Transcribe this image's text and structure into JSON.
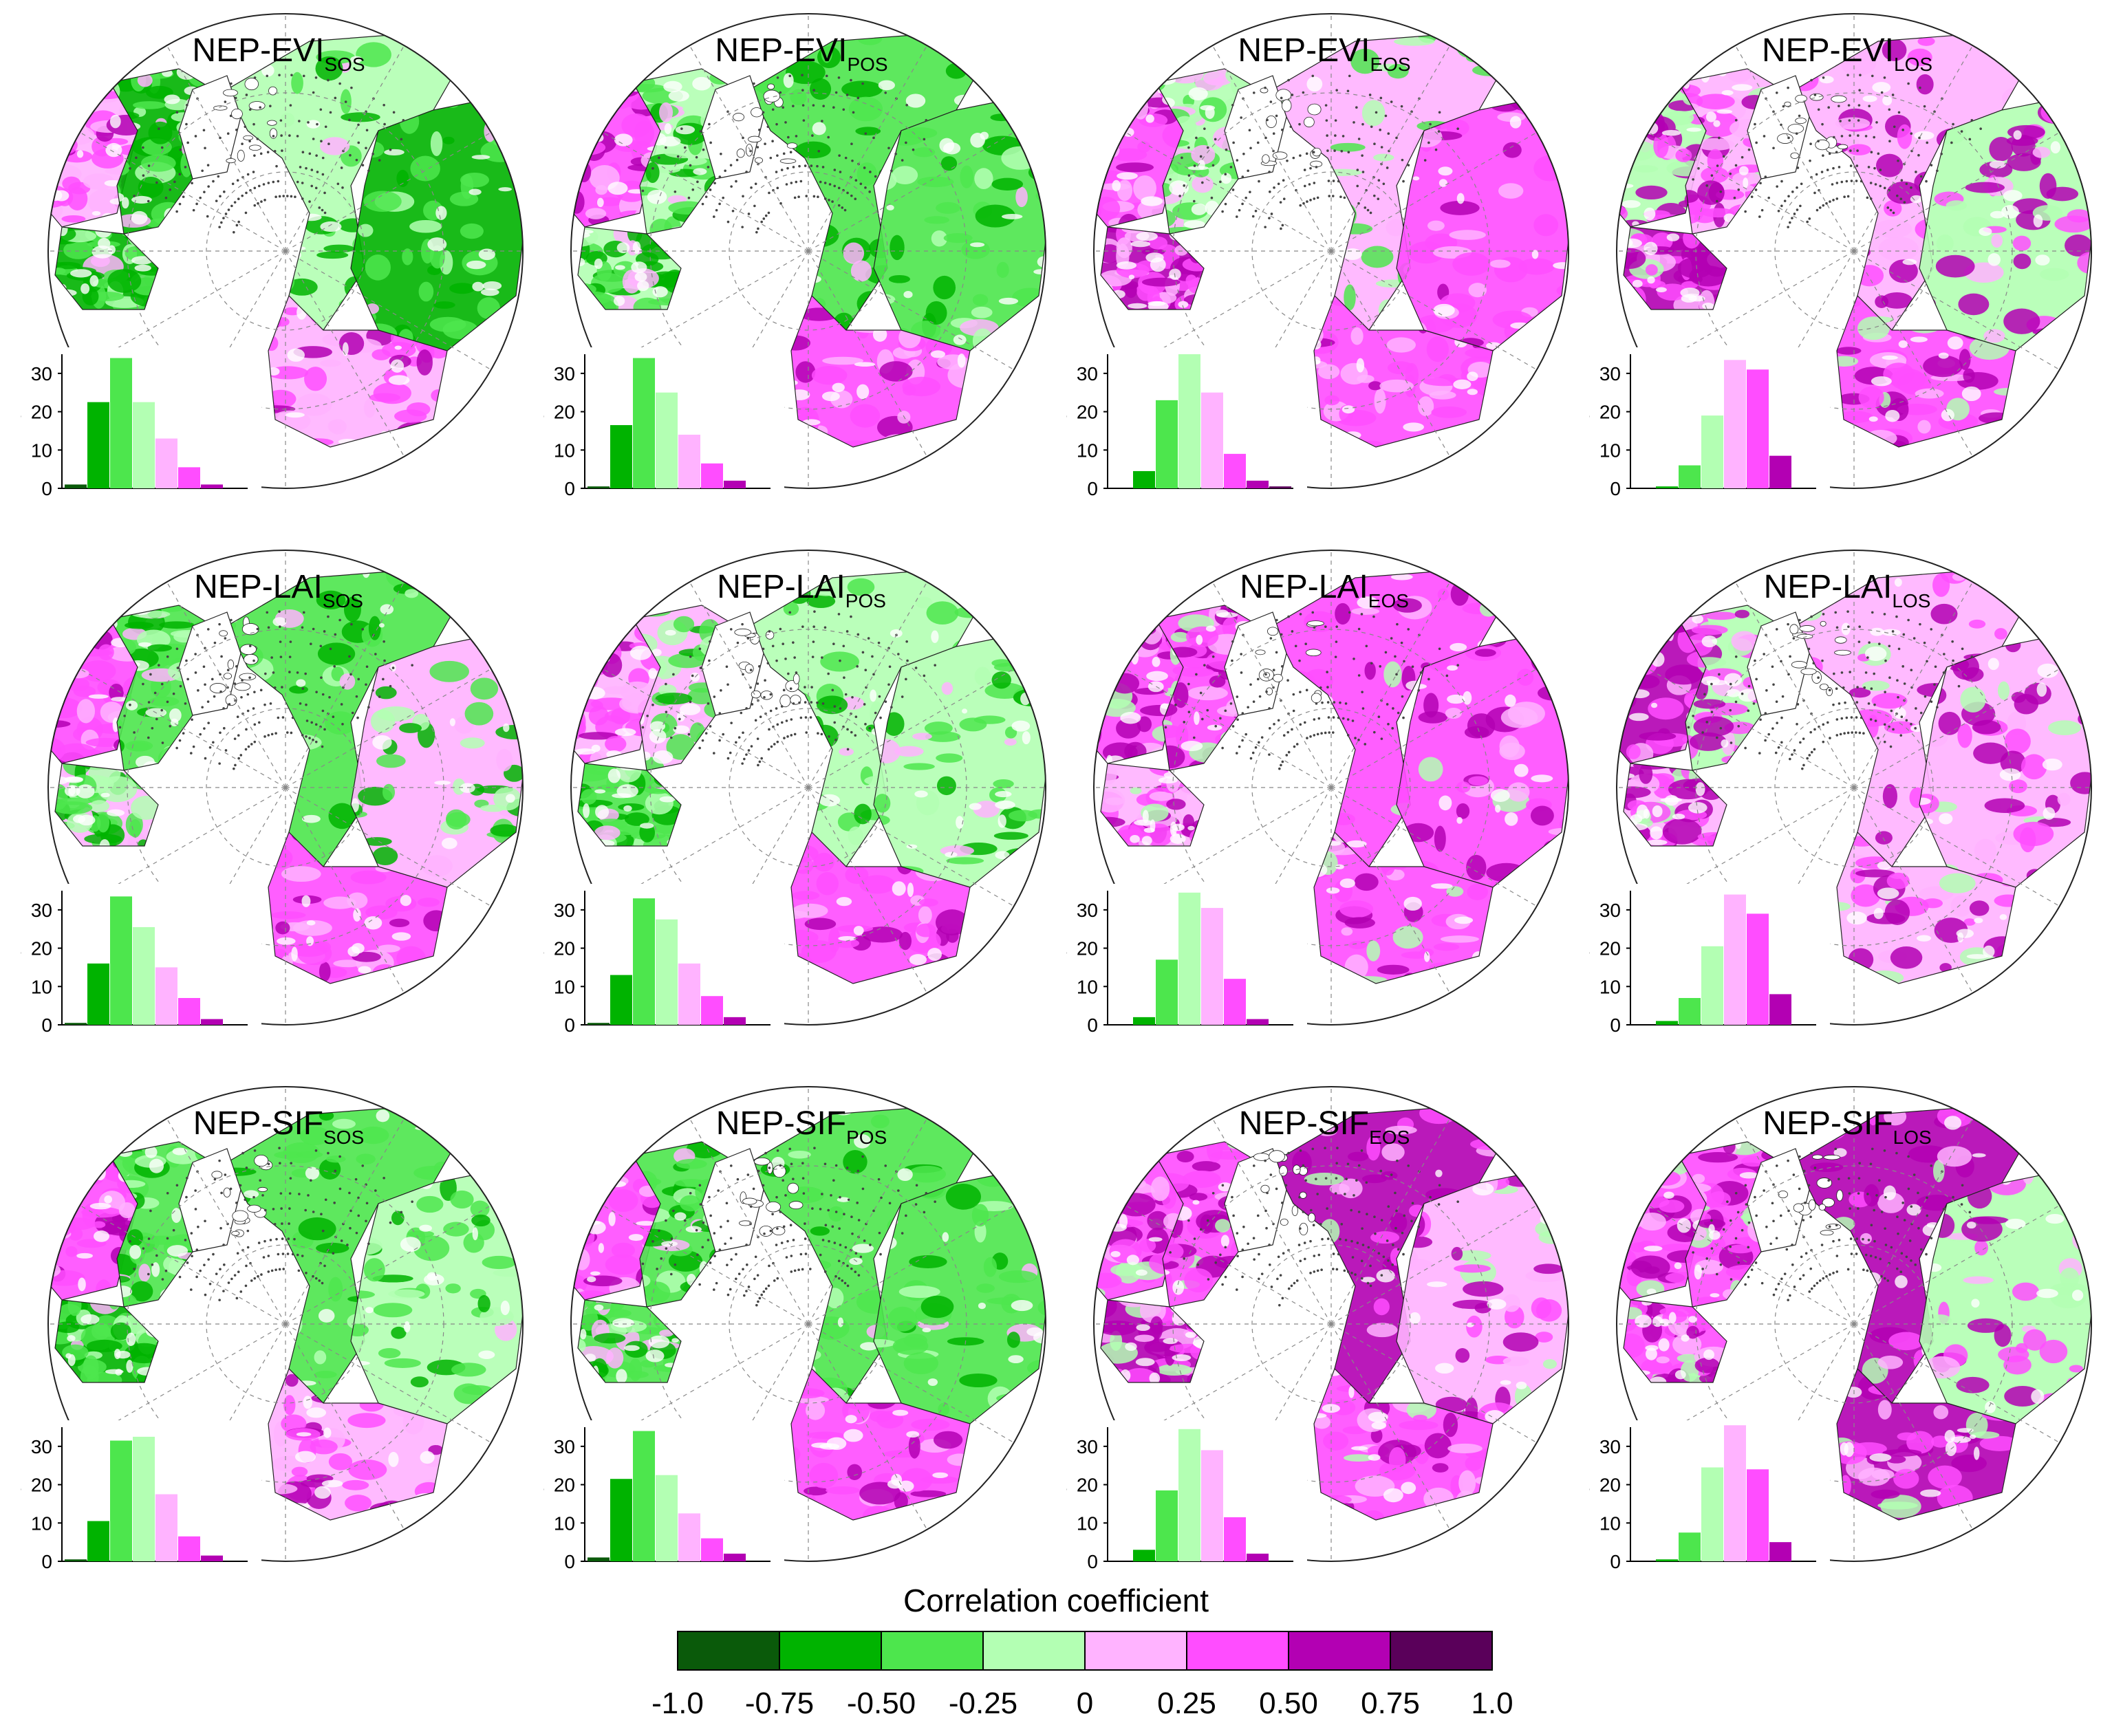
{
  "colorbar": {
    "title": "Correlation coefficient",
    "labels": [
      "-1.0",
      "-0.75",
      "-0.50",
      "-0.25",
      "0",
      "0.25",
      "0.50",
      "0.75",
      "1.0"
    ],
    "colors": [
      "#0a5a0a",
      "#00b300",
      "#4de64d",
      "#b3ffb3",
      "#ffb3ff",
      "#ff4dff",
      "#b300b3",
      "#5a005a"
    ]
  },
  "histogram_axis": {
    "ylabel": "%",
    "ticks": [
      "0",
      "10",
      "20",
      "30"
    ]
  },
  "panels": [
    {
      "row": 0,
      "col": 0,
      "title_main": "NEP-EVI",
      "title_sub": "SOS"
    },
    {
      "row": 0,
      "col": 1,
      "title_main": "NEP-EVI",
      "title_sub": "POS"
    },
    {
      "row": 0,
      "col": 2,
      "title_main": "NEP-EVI",
      "title_sub": "EOS"
    },
    {
      "row": 0,
      "col": 3,
      "title_main": "NEP-EVI",
      "title_sub": "LOS"
    },
    {
      "row": 1,
      "col": 0,
      "title_main": "NEP-LAI",
      "title_sub": "SOS"
    },
    {
      "row": 1,
      "col": 1,
      "title_main": "NEP-LAI",
      "title_sub": "POS"
    },
    {
      "row": 1,
      "col": 2,
      "title_main": "NEP-LAI",
      "title_sub": "EOS"
    },
    {
      "row": 1,
      "col": 3,
      "title_main": "NEP-LAI",
      "title_sub": "LOS"
    },
    {
      "row": 2,
      "col": 0,
      "title_main": "NEP-SIF",
      "title_sub": "SOS"
    },
    {
      "row": 2,
      "col": 1,
      "title_main": "NEP-SIF",
      "title_sub": "POS"
    },
    {
      "row": 2,
      "col": 2,
      "title_main": "NEP-SIF",
      "title_sub": "EOS"
    },
    {
      "row": 2,
      "col": 3,
      "title_main": "NEP-SIF",
      "title_sub": "LOS"
    }
  ],
  "chart_data": [
    {
      "type": "bar",
      "title": "NEP-EVI SOS",
      "ylabel": "%",
      "ylim": [
        0,
        35
      ],
      "categories": [
        "-1.0 to -0.75",
        "-0.75 to -0.50",
        "-0.50 to -0.25",
        "-0.25 to 0",
        "0 to 0.25",
        "0.25 to 0.50",
        "0.50 to 0.75",
        "0.75 to 1.0"
      ],
      "values": [
        1,
        22.5,
        34,
        22.5,
        13,
        5.5,
        1,
        0
      ],
      "map_dominant": "green"
    },
    {
      "type": "bar",
      "title": "NEP-EVI POS",
      "ylabel": "%",
      "ylim": [
        0,
        35
      ],
      "categories": [
        "-1.0 to -0.75",
        "-0.75 to -0.50",
        "-0.50 to -0.25",
        "-0.25 to 0",
        "0 to 0.25",
        "0.25 to 0.50",
        "0.50 to 0.75",
        "0.75 to 1.0"
      ],
      "values": [
        0.5,
        16.5,
        34,
        25,
        14,
        6.5,
        2,
        0
      ],
      "map_dominant": "green"
    },
    {
      "type": "bar",
      "title": "NEP-EVI EOS",
      "ylabel": "%",
      "ylim": [
        0,
        35
      ],
      "categories": [
        "-1.0 to -0.75",
        "-0.75 to -0.50",
        "-0.50 to -0.25",
        "-0.25 to 0",
        "0 to 0.25",
        "0.25 to 0.50",
        "0.50 to 0.75",
        "0.75 to 1.0"
      ],
      "values": [
        0,
        4.5,
        23,
        35,
        25,
        9,
        2,
        0.5
      ],
      "map_dominant": "mixed"
    },
    {
      "type": "bar",
      "title": "NEP-EVI LOS",
      "ylabel": "%",
      "ylim": [
        0,
        35
      ],
      "categories": [
        "-1.0 to -0.75",
        "-0.75 to -0.50",
        "-0.50 to -0.25",
        "-0.25 to 0",
        "0 to 0.25",
        "0.25 to 0.50",
        "0.50 to 0.75",
        "0.75 to 1.0"
      ],
      "values": [
        0,
        0.5,
        6,
        19,
        33.5,
        31,
        8.5,
        0
      ],
      "map_dominant": "magenta"
    },
    {
      "type": "bar",
      "title": "NEP-LAI SOS",
      "ylabel": "%",
      "ylim": [
        0,
        35
      ],
      "categories": [
        "-1.0 to -0.75",
        "-0.75 to -0.50",
        "-0.50 to -0.25",
        "-0.25 to 0",
        "0 to 0.25",
        "0.25 to 0.50",
        "0.50 to 0.75",
        "0.75 to 1.0"
      ],
      "values": [
        0.5,
        16,
        33.5,
        25.5,
        15,
        7,
        1.5,
        0
      ],
      "map_dominant": "green"
    },
    {
      "type": "bar",
      "title": "NEP-LAI POS",
      "ylabel": "%",
      "ylim": [
        0,
        35
      ],
      "categories": [
        "-1.0 to -0.75",
        "-0.75 to -0.50",
        "-0.50 to -0.25",
        "-0.25 to 0",
        "0 to 0.25",
        "0.25 to 0.50",
        "0.50 to 0.75",
        "0.75 to 1.0"
      ],
      "values": [
        0.5,
        13,
        33,
        27.5,
        16,
        7.5,
        2,
        0
      ],
      "map_dominant": "green"
    },
    {
      "type": "bar",
      "title": "NEP-LAI EOS",
      "ylabel": "%",
      "ylim": [
        0,
        35
      ],
      "categories": [
        "-1.0 to -0.75",
        "-0.75 to -0.50",
        "-0.50 to -0.25",
        "-0.25 to 0",
        "0 to 0.25",
        "0.25 to 0.50",
        "0.50 to 0.75",
        "0.75 to 1.0"
      ],
      "values": [
        0,
        2,
        17,
        34.5,
        30.5,
        12,
        1.5,
        0
      ],
      "map_dominant": "magenta"
    },
    {
      "type": "bar",
      "title": "NEP-LAI LOS",
      "ylabel": "%",
      "ylim": [
        0,
        35
      ],
      "categories": [
        "-1.0 to -0.75",
        "-0.75 to -0.50",
        "-0.50 to -0.25",
        "-0.25 to 0",
        "0 to 0.25",
        "0.25 to 0.50",
        "0.50 to 0.75",
        "0.75 to 1.0"
      ],
      "values": [
        0,
        1,
        7,
        20.5,
        34,
        29,
        8,
        0
      ],
      "map_dominant": "magenta"
    },
    {
      "type": "bar",
      "title": "NEP-SIF SOS",
      "ylabel": "%",
      "ylim": [
        0,
        35
      ],
      "categories": [
        "-1.0 to -0.75",
        "-0.75 to -0.50",
        "-0.50 to -0.25",
        "-0.25 to 0",
        "0 to 0.25",
        "0.25 to 0.50",
        "0.50 to 0.75",
        "0.75 to 1.0"
      ],
      "values": [
        0.5,
        10.5,
        31.5,
        32.5,
        17.5,
        6.5,
        1.5,
        0
      ],
      "map_dominant": "green"
    },
    {
      "type": "bar",
      "title": "NEP-SIF POS",
      "ylabel": "%",
      "ylim": [
        0,
        35
      ],
      "categories": [
        "-1.0 to -0.75",
        "-0.75 to -0.50",
        "-0.50 to -0.25",
        "-0.25 to 0",
        "0 to 0.25",
        "0.25 to 0.50",
        "0.50 to 0.75",
        "0.75 to 1.0"
      ],
      "values": [
        1,
        21.5,
        34,
        22.5,
        12.5,
        6,
        2,
        0
      ],
      "map_dominant": "green"
    },
    {
      "type": "bar",
      "title": "NEP-SIF EOS",
      "ylabel": "%",
      "ylim": [
        0,
        35
      ],
      "categories": [
        "-1.0 to -0.75",
        "-0.75 to -0.50",
        "-0.50 to -0.25",
        "-0.25 to 0",
        "0 to 0.25",
        "0.25 to 0.50",
        "0.50 to 0.75",
        "0.75 to 1.0"
      ],
      "values": [
        0,
        3,
        18.5,
        34.5,
        29,
        11.5,
        2,
        0
      ],
      "map_dominant": "magenta"
    },
    {
      "type": "bar",
      "title": "NEP-SIF LOS",
      "ylabel": "%",
      "ylim": [
        0,
        35
      ],
      "categories": [
        "-1.0 to -0.75",
        "-0.75 to -0.50",
        "-0.50 to -0.25",
        "-0.25 to 0",
        "0 to 0.25",
        "0.25 to 0.50",
        "0.50 to 0.75",
        "0.75 to 1.0"
      ],
      "values": [
        0,
        0.5,
        7.5,
        24.5,
        35.5,
        24,
        5,
        0
      ],
      "map_dominant": "magenta"
    }
  ]
}
